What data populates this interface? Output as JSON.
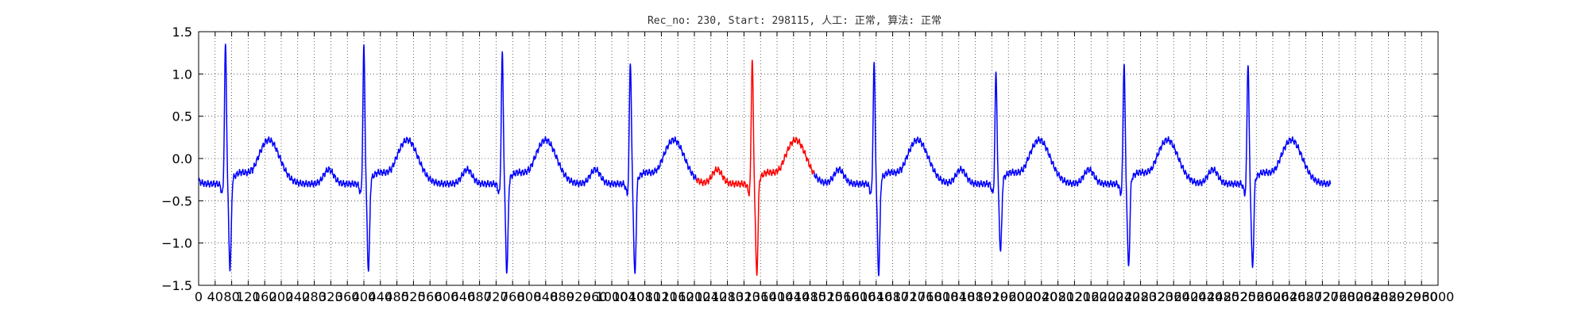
{
  "chart_data": {
    "type": "line",
    "title": "Rec_no: 230, Start: 298115, 人工: 正常, 算法: 正常",
    "xlabel": "",
    "ylabel": "",
    "xlim": [
      0,
      3000
    ],
    "ylim": [
      -1.5,
      1.5
    ],
    "grid": true,
    "x_tick_labels": [
      "0",
      "40",
      "80",
      "120",
      "160",
      "200",
      "240",
      "280",
      "320",
      "360",
      "400",
      "440",
      "480",
      "520",
      "560",
      "600",
      "640",
      "680",
      "720",
      "760",
      "800",
      "840",
      "880",
      "920",
      "960",
      "1000",
      "1040",
      "1080",
      "1120",
      "1160",
      "1200",
      "1240",
      "1280",
      "1320",
      "1360",
      "1400",
      "1440",
      "1480",
      "1520",
      "1560",
      "1600",
      "1640",
      "1680",
      "1720",
      "1760",
      "1800",
      "1840",
      "1880",
      "1920",
      "1960",
      "2000",
      "2040",
      "2080",
      "2120",
      "2160",
      "2200",
      "2240",
      "2280",
      "2320",
      "2360",
      "2400",
      "2440",
      "2480",
      "2520",
      "2560",
      "2600",
      "2640",
      "2680",
      "2720",
      "2760",
      "2800",
      "2840",
      "2880",
      "2920",
      "2960",
      "3000"
    ],
    "y_tick_labels": [
      "1.5",
      "1.0",
      "0.5",
      "0.0",
      "−0.5",
      "−1.0",
      "−1.5"
    ],
    "colors": {
      "normal": "#0000ff",
      "highlight": "#ff0000"
    },
    "series": [
      {
        "role": "normal",
        "color": "#0000ff",
        "beats_at": [
          70,
          405,
          740,
          1050,
          1640,
          1935,
          2245,
          2545
        ],
        "x_range": [
          0,
          1205
        ],
        "x_range2": [
          1490,
          2740
        ]
      },
      {
        "role": "highlight",
        "color": "#ff0000",
        "beats_at": [
          1345
        ],
        "x_range": [
          1205,
          1490
        ]
      }
    ],
    "r_peaks": [
      {
        "x": 70,
        "y": 1.36,
        "s": -1.3
      },
      {
        "x": 405,
        "y": 1.33,
        "s": -1.32
      },
      {
        "x": 740,
        "y": 1.25,
        "s": -1.34
      },
      {
        "x": 1050,
        "y": 1.16,
        "s": -1.38
      },
      {
        "x": 1345,
        "y": 1.19,
        "s": -1.37
      },
      {
        "x": 1640,
        "y": 1.13,
        "s": -1.36
      },
      {
        "x": 1935,
        "y": 1.03,
        "s": -1.1
      },
      {
        "x": 2245,
        "y": 1.15,
        "s": -1.28
      },
      {
        "x": 2545,
        "y": 1.15,
        "s": -1.29
      }
    ],
    "baseline": -0.3
  }
}
